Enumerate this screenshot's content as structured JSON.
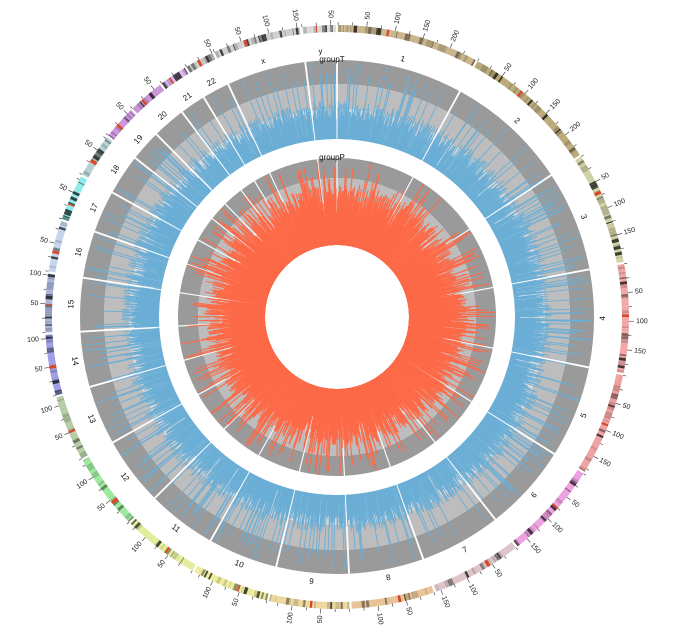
{
  "chart_data": {
    "type": "circos",
    "title": "",
    "tick_interval_mb": 50,
    "chromosomes": [
      {
        "name": "1",
        "length_mb": 249,
        "color": "#c9b48a"
      },
      {
        "name": "2",
        "length_mb": 243,
        "color": "#b9a877"
      },
      {
        "name": "3",
        "length_mb": 198,
        "color": "#cfd0a4"
      },
      {
        "name": "4",
        "length_mb": 191,
        "color": "#f2a6a6"
      },
      {
        "name": "5",
        "length_mb": 181,
        "color": "#eea0a0"
      },
      {
        "name": "6",
        "length_mb": 171,
        "color": "#ee9ee0"
      },
      {
        "name": "7",
        "length_mb": 159,
        "color": "#dcc3c8"
      },
      {
        "name": "8",
        "length_mb": 146,
        "color": "#e8c294"
      },
      {
        "name": "9",
        "length_mb": 141,
        "color": "#ecd79c"
      },
      {
        "name": "10",
        "length_mb": 136,
        "color": "#ecec9c"
      },
      {
        "name": "11",
        "length_mb": 135,
        "color": "#e2ec9a"
      },
      {
        "name": "12",
        "length_mb": 134,
        "color": "#9ce89c"
      },
      {
        "name": "13",
        "length_mb": 115,
        "color": "#b4cca4"
      },
      {
        "name": "14",
        "length_mb": 107,
        "color": "#9c9ce6"
      },
      {
        "name": "15",
        "length_mb": 103,
        "color": "#a8b4dc"
      },
      {
        "name": "16",
        "length_mb": 90,
        "color": "#c4d4ec"
      },
      {
        "name": "17",
        "length_mb": 81,
        "color": "#8ceaea"
      },
      {
        "name": "18",
        "length_mb": 78,
        "color": "#b4d0d0"
      },
      {
        "name": "19",
        "length_mb": 59,
        "color": "#cc94dc"
      },
      {
        "name": "20",
        "length_mb": 63,
        "color": "#c894d4"
      },
      {
        "name": "21",
        "length_mb": 48,
        "color": "#d8b4ec"
      },
      {
        "name": "22",
        "length_mb": 51,
        "color": "#c8c8c8"
      },
      {
        "name": "x",
        "length_mb": 155,
        "color": "#cfcfcf"
      },
      {
        "name": "y",
        "length_mb": 59,
        "color": "#d8d8d8"
      }
    ],
    "tracks": [
      {
        "name": "groupT",
        "type": "bar",
        "color": "#6baed6",
        "mean_level": 0.42,
        "ylim": [
          0,
          1
        ]
      },
      {
        "name": "groupP",
        "type": "bar",
        "color": "#fc6a48",
        "mean_level": 0.6,
        "ylim": [
          0,
          1
        ]
      }
    ],
    "centromere_color": "#d9472b",
    "background_bands": [
      "#9a9a9a",
      "#bdbdbd",
      "#d8d8d8",
      "#efefef"
    ]
  }
}
